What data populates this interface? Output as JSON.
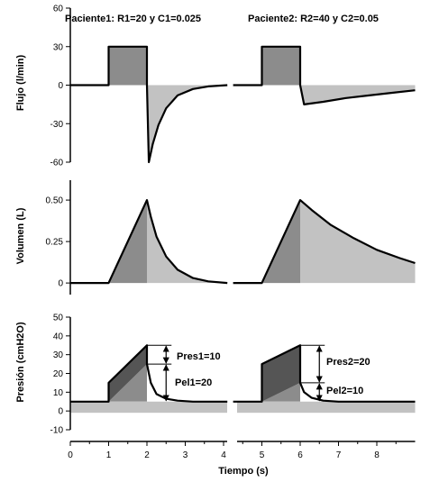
{
  "chart_data": {
    "type": "line",
    "xlabel": "Tiempo (s)",
    "x_ticks": [
      0,
      1,
      2,
      3,
      4,
      5,
      6,
      7,
      8
    ],
    "xlim": [
      0,
      9
    ],
    "patients": [
      {
        "title": "Paciente1: R1=20 y C1=0.025",
        "R": 20,
        "C": 0.025,
        "t_start": 1
      },
      {
        "title": "Paciente2: R2=40 y C2=0.05",
        "R": 40,
        "C": 0.05,
        "t_start": 5
      }
    ],
    "panels": [
      {
        "name": "flujo",
        "ylabel": "Flujo (l/min)",
        "ylim": [
          -60,
          60
        ],
        "y_ticks": [
          60,
          30,
          0,
          -30,
          -60
        ],
        "series": [
          {
            "patient": 1,
            "x": [
              0,
              1,
              1,
              2,
              2,
              2.05,
              2.15,
              2.3,
              2.5,
              2.8,
              3.2,
              3.6,
              4.1
            ],
            "y": [
              0,
              0,
              30,
              30,
              0,
              -60,
              -46,
              -31,
              -18,
              -8,
              -3,
              -1,
              0
            ]
          },
          {
            "patient": 2,
            "x": [
              4.25,
              5,
              5,
              6,
              6,
              6.1,
              6.6,
              7.2,
              7.8,
              8.4,
              9
            ],
            "y": [
              0,
              0,
              30,
              30,
              0,
              -15,
              -13,
              -10,
              -8,
              -6,
              -4
            ]
          }
        ]
      },
      {
        "name": "volumen",
        "ylabel": "Volumen (L)",
        "ylim": [
          -0.07,
          0.62
        ],
        "y_ticks": [
          0.5,
          0.25,
          0
        ],
        "y_tick_labels": [
          "0.50",
          "0.25",
          "0"
        ],
        "series": [
          {
            "patient": 1,
            "x": [
              0,
              1,
              2,
              2.1,
              2.25,
              2.5,
              2.8,
              3.2,
              3.6,
              4.1
            ],
            "y": [
              0,
              0,
              0.5,
              0.4,
              0.28,
              0.16,
              0.08,
              0.03,
              0.01,
              0
            ]
          },
          {
            "patient": 2,
            "x": [
              4.25,
              5,
              6,
              6.3,
              6.8,
              7.4,
              8,
              8.6,
              9
            ],
            "y": [
              0,
              0,
              0.5,
              0.44,
              0.35,
              0.27,
              0.2,
              0.15,
              0.12
            ]
          }
        ]
      },
      {
        "name": "presion",
        "ylabel": "Presión (cmH2O)",
        "ylim": [
          -10,
          50
        ],
        "y_ticks": [
          50,
          40,
          30,
          20,
          10,
          0,
          -10
        ],
        "peep": 5,
        "series": [
          {
            "patient": 1,
            "x": [
              0,
              1,
              1,
              2,
              2,
              2.1,
              2.25,
              2.5,
              2.8,
              3.2,
              4.1
            ],
            "y": [
              5,
              5,
              15,
              35,
              25,
              15,
              9,
              6.5,
              5.5,
              5,
              5
            ]
          },
          {
            "patient": 2,
            "x": [
              4.25,
              5,
              5,
              6,
              6,
              6.1,
              6.3,
              6.6,
              7,
              9
            ],
            "y": [
              5,
              5,
              25,
              35,
              15,
              10,
              7,
              5.5,
              5,
              5
            ]
          }
        ],
        "annotations": [
          {
            "text": "Pres1=10",
            "patient": 1,
            "x": 2.5,
            "y_from": 25,
            "y_to": 35
          },
          {
            "text": "Pel1=20",
            "patient": 1,
            "x": 2.5,
            "y_from": 5,
            "y_to": 25
          },
          {
            "text": "Pres2=20",
            "patient": 2,
            "x": 6.5,
            "y_from": 15,
            "y_to": 35
          },
          {
            "text": "Pel2=10",
            "patient": 2,
            "x": 6.5,
            "y_from": 5,
            "y_to": 15
          }
        ]
      }
    ]
  },
  "colors": {
    "axis": "#000000",
    "dark_fill": "#555555",
    "mid_fill": "#8c8c8c",
    "light_fill": "#c2c2c2",
    "curve": "#000000"
  }
}
